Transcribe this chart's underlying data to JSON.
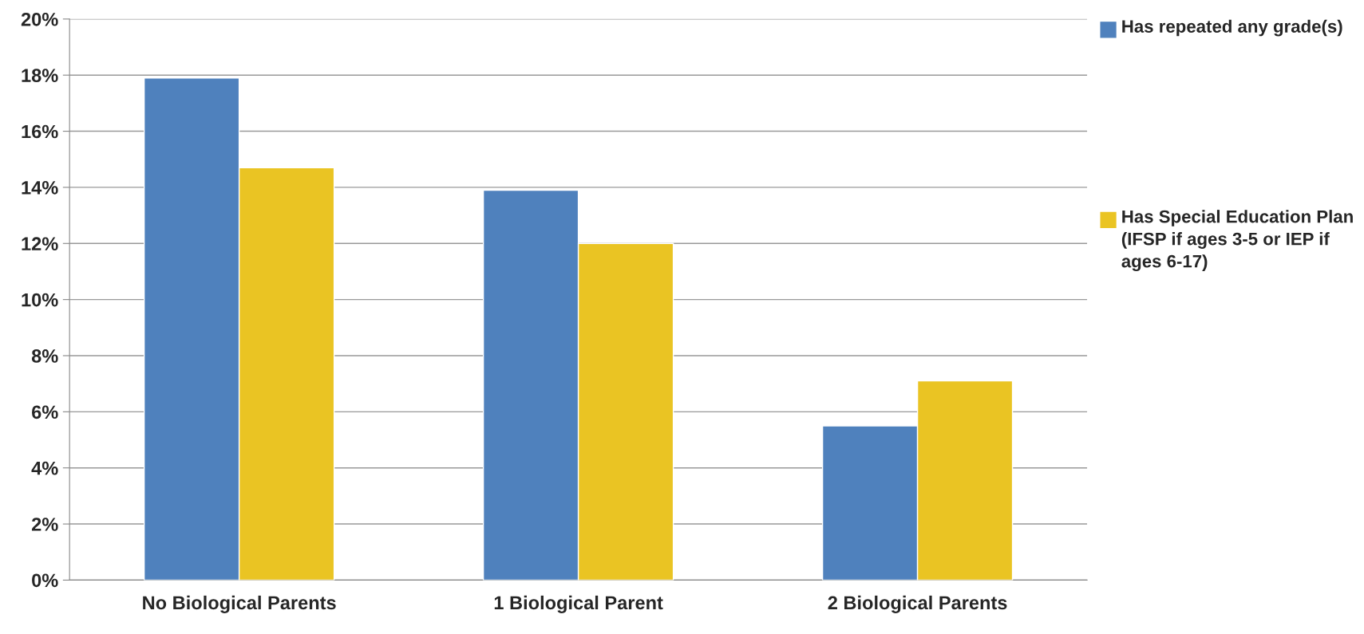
{
  "chart_data": {
    "type": "bar",
    "categories": [
      "No Biological Parents",
      "1 Biological Parent",
      "2 Biological Parents"
    ],
    "series": [
      {
        "name": "Has repeated any grade(s)",
        "color": "#4f81bd",
        "values": [
          17.9,
          13.9,
          5.5
        ]
      },
      {
        "name": "Has Special Education Plan (IFSP if ages 3-5 or IEP if ages 6-17)",
        "color": "#eac423",
        "values": [
          14.7,
          12.0,
          7.1
        ]
      }
    ],
    "ylim": [
      0,
      20
    ],
    "yticks": [
      {
        "value": 0,
        "label": "0%"
      },
      {
        "value": 2,
        "label": "2%"
      },
      {
        "value": 4,
        "label": "4%"
      },
      {
        "value": 6,
        "label": "6%"
      },
      {
        "value": 8,
        "label": "8%"
      },
      {
        "value": 10,
        "label": "10%"
      },
      {
        "value": 12,
        "label": "12%"
      },
      {
        "value": 14,
        "label": "14%"
      },
      {
        "value": 16,
        "label": "16%"
      },
      {
        "value": 18,
        "label": "18%"
      },
      {
        "value": 20,
        "label": "20%"
      }
    ],
    "grid": "y",
    "legend": "right"
  }
}
